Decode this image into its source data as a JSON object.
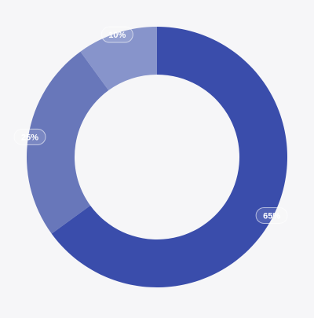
{
  "chart_data": {
    "type": "donut",
    "values": [
      65,
      25,
      10
    ],
    "value_labels": [
      "65%",
      "25%",
      "10%"
    ],
    "colors": [
      "#3a4dab",
      "#6877ba",
      "#8794cb"
    ]
  }
}
